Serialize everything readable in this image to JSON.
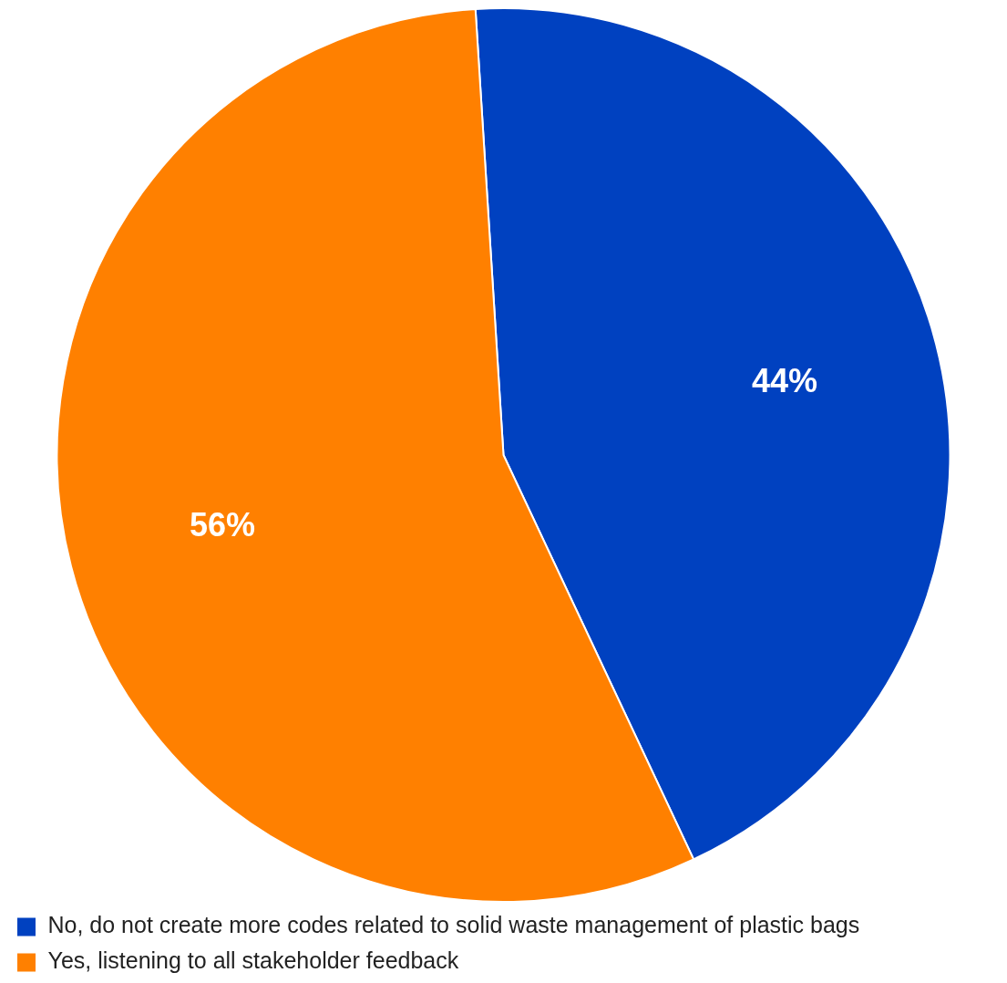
{
  "chart_data": {
    "type": "pie",
    "categories": [
      "No, do not create more codes related to solid waste management of plastic bags",
      "Yes, listening to all stakeholder feedback"
    ],
    "values": [
      44,
      56
    ],
    "colors": [
      "#0041c0",
      "#ff8000"
    ],
    "value_labels": [
      "44%",
      "56%"
    ],
    "legend": "bottom left"
  }
}
